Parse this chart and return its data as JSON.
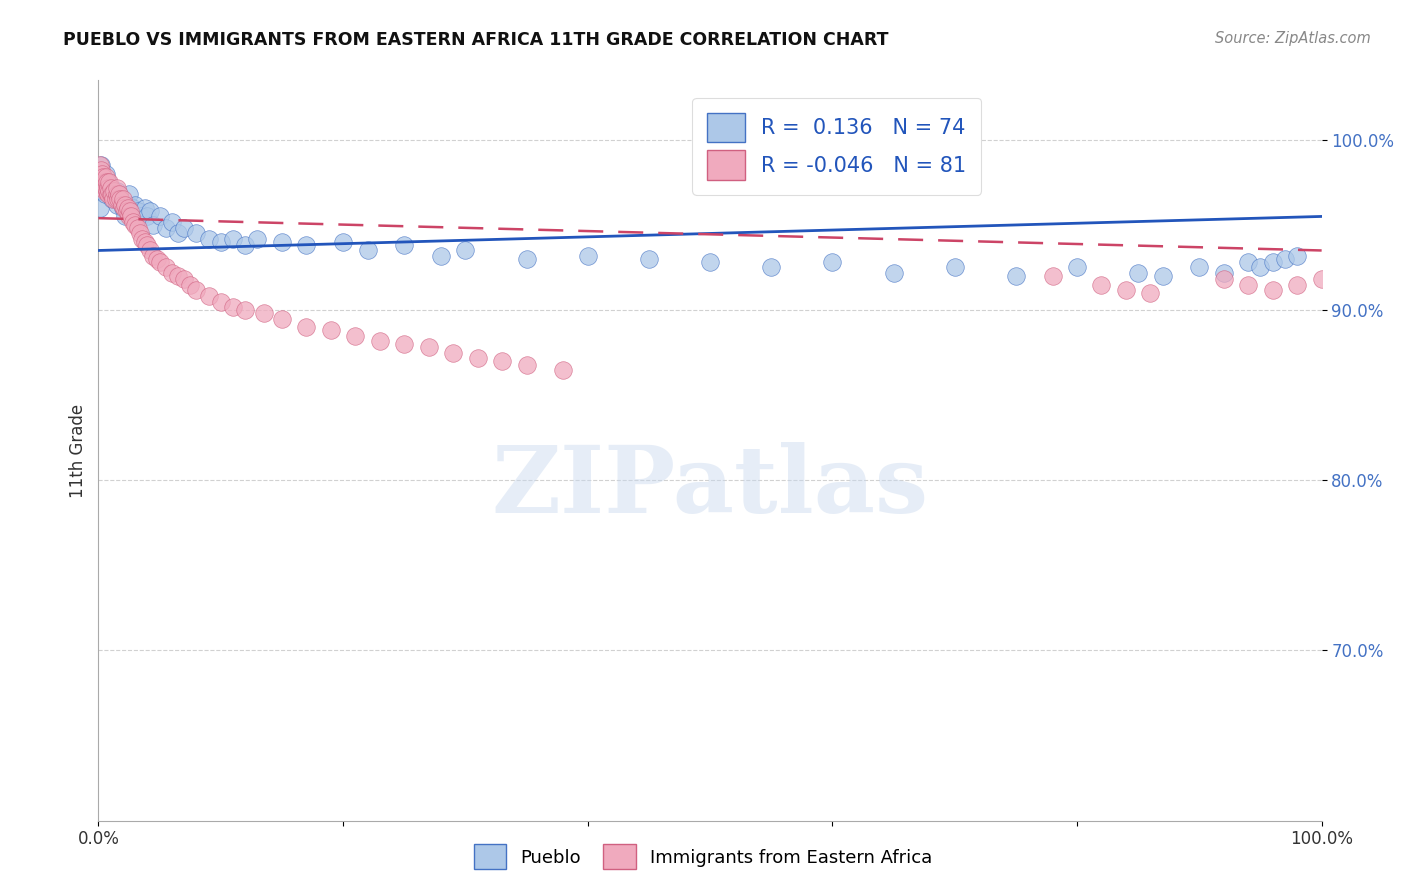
{
  "title": "PUEBLO VS IMMIGRANTS FROM EASTERN AFRICA 11TH GRADE CORRELATION CHART",
  "source_text": "Source: ZipAtlas.com",
  "ylabel": "11th Grade",
  "watermark": "ZIPatlas",
  "blue_label": "Pueblo",
  "pink_label": "Immigrants from Eastern Africa",
  "blue_R": 0.136,
  "blue_N": 74,
  "pink_R": -0.046,
  "pink_N": 81,
  "blue_color": "#adc8e8",
  "pink_color": "#f0aabe",
  "blue_edge_color": "#4472c4",
  "pink_edge_color": "#d06080",
  "blue_line_color": "#2255bb",
  "pink_line_color": "#cc4466",
  "x_min": 0.0,
  "x_max": 1.0,
  "y_min": 0.6,
  "y_max": 1.035,
  "ytick_positions": [
    0.7,
    0.8,
    0.9,
    1.0
  ],
  "ytick_labels": [
    "70.0%",
    "80.0%",
    "90.0%",
    "100.0%"
  ],
  "blue_scatter_x": [
    0.001,
    0.002,
    0.002,
    0.003,
    0.003,
    0.004,
    0.004,
    0.005,
    0.005,
    0.006,
    0.006,
    0.007,
    0.008,
    0.009,
    0.01,
    0.01,
    0.011,
    0.012,
    0.013,
    0.014,
    0.015,
    0.015,
    0.016,
    0.017,
    0.018,
    0.02,
    0.022,
    0.025,
    0.025,
    0.028,
    0.03,
    0.032,
    0.035,
    0.038,
    0.04,
    0.042,
    0.045,
    0.05,
    0.055,
    0.06,
    0.065,
    0.07,
    0.08,
    0.09,
    0.1,
    0.11,
    0.12,
    0.13,
    0.15,
    0.17,
    0.2,
    0.22,
    0.25,
    0.28,
    0.3,
    0.35,
    0.4,
    0.45,
    0.5,
    0.55,
    0.6,
    0.65,
    0.7,
    0.75,
    0.8,
    0.85,
    0.87,
    0.9,
    0.92,
    0.94,
    0.95,
    0.96,
    0.97,
    0.98
  ],
  "blue_scatter_y": [
    0.96,
    0.975,
    0.985,
    0.97,
    0.98,
    0.97,
    0.975,
    0.968,
    0.972,
    0.975,
    0.98,
    0.97,
    0.975,
    0.972,
    0.968,
    0.972,
    0.965,
    0.97,
    0.968,
    0.965,
    0.962,
    0.97,
    0.965,
    0.968,
    0.965,
    0.96,
    0.955,
    0.962,
    0.968,
    0.96,
    0.962,
    0.958,
    0.955,
    0.96,
    0.955,
    0.958,
    0.95,
    0.955,
    0.948,
    0.952,
    0.945,
    0.948,
    0.945,
    0.942,
    0.94,
    0.942,
    0.938,
    0.942,
    0.94,
    0.938,
    0.94,
    0.935,
    0.938,
    0.932,
    0.935,
    0.93,
    0.932,
    0.93,
    0.928,
    0.925,
    0.928,
    0.922,
    0.925,
    0.92,
    0.925,
    0.922,
    0.92,
    0.925,
    0.922,
    0.928,
    0.925,
    0.928,
    0.93,
    0.932
  ],
  "pink_scatter_x": [
    0.001,
    0.001,
    0.002,
    0.002,
    0.003,
    0.003,
    0.004,
    0.004,
    0.005,
    0.005,
    0.006,
    0.006,
    0.007,
    0.007,
    0.008,
    0.008,
    0.009,
    0.009,
    0.01,
    0.01,
    0.011,
    0.012,
    0.013,
    0.014,
    0.015,
    0.015,
    0.016,
    0.017,
    0.018,
    0.019,
    0.02,
    0.021,
    0.022,
    0.023,
    0.024,
    0.025,
    0.026,
    0.027,
    0.028,
    0.03,
    0.032,
    0.034,
    0.036,
    0.038,
    0.04,
    0.042,
    0.045,
    0.048,
    0.05,
    0.055,
    0.06,
    0.065,
    0.07,
    0.075,
    0.08,
    0.09,
    0.1,
    0.11,
    0.12,
    0.135,
    0.15,
    0.17,
    0.19,
    0.21,
    0.23,
    0.25,
    0.27,
    0.29,
    0.31,
    0.33,
    0.35,
    0.38,
    0.78,
    0.82,
    0.84,
    0.86,
    0.92,
    0.94,
    0.96,
    0.98,
    1.0
  ],
  "pink_scatter_y": [
    0.98,
    0.985,
    0.978,
    0.982,
    0.975,
    0.98,
    0.972,
    0.978,
    0.97,
    0.975,
    0.972,
    0.978,
    0.97,
    0.975,
    0.968,
    0.972,
    0.97,
    0.975,
    0.968,
    0.972,
    0.968,
    0.965,
    0.97,
    0.965,
    0.968,
    0.972,
    0.965,
    0.968,
    0.965,
    0.962,
    0.965,
    0.96,
    0.962,
    0.958,
    0.96,
    0.955,
    0.958,
    0.955,
    0.952,
    0.95,
    0.948,
    0.945,
    0.942,
    0.94,
    0.938,
    0.935,
    0.932,
    0.93,
    0.928,
    0.925,
    0.922,
    0.92,
    0.918,
    0.915,
    0.912,
    0.908,
    0.905,
    0.902,
    0.9,
    0.898,
    0.895,
    0.89,
    0.888,
    0.885,
    0.882,
    0.88,
    0.878,
    0.875,
    0.872,
    0.87,
    0.868,
    0.865,
    0.92,
    0.915,
    0.912,
    0.91,
    0.918,
    0.915,
    0.912,
    0.915,
    0.918
  ]
}
